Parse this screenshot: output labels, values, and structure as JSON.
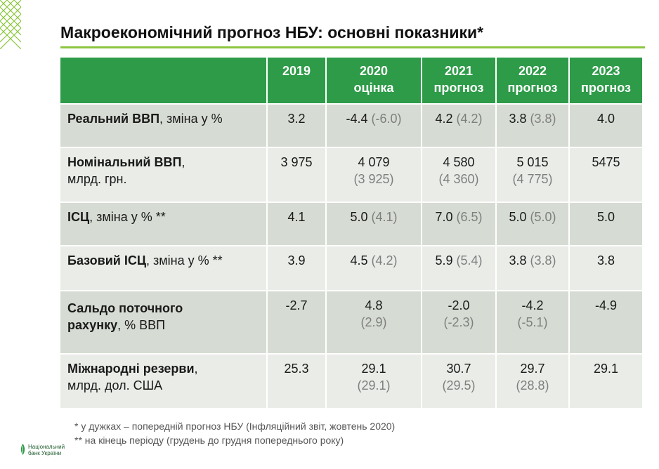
{
  "title": "Макроекономічний прогноз НБУ: основні показники*",
  "colors": {
    "header_green": "#2e9b48",
    "accent_rule": "#8cc63f",
    "row_dark": "#d6dcd3",
    "row_light": "#e9ece7",
    "prev_grey": "#7f7f7f"
  },
  "table": {
    "headers": [
      {
        "line1": "",
        "line2": ""
      },
      {
        "line1": "2019",
        "line2": ""
      },
      {
        "line1": "2020",
        "line2": "оцінка"
      },
      {
        "line1": "2021",
        "line2": "прогноз"
      },
      {
        "line1": "2022",
        "line2": "прогноз"
      },
      {
        "line1": "2023",
        "line2": "прогноз"
      }
    ],
    "rows": [
      {
        "label_bold": "Реальний ВВП",
        "label_rest": ", зміна у %",
        "label_line2": "",
        "cells": [
          {
            "value": "3.2",
            "prev": ""
          },
          {
            "value": "-4.4",
            "prev": "(-6.0)"
          },
          {
            "value": "4.2",
            "prev": "(4.2)"
          },
          {
            "value": "3.8",
            "prev": "(3.8)"
          },
          {
            "value": "4.0",
            "prev": ""
          }
        ]
      },
      {
        "label_bold": "Номінальний ВВП",
        "label_rest": ",",
        "label_line2": "млрд. грн.",
        "cells": [
          {
            "value": "3 975",
            "prev": ""
          },
          {
            "value": "4 079",
            "prev": "(3 925)"
          },
          {
            "value": "4 580",
            "prev": "(4 360)"
          },
          {
            "value": "5 015",
            "prev": "(4 775)"
          },
          {
            "value": "5475",
            "prev": ""
          }
        ]
      },
      {
        "label_bold": "ІСЦ",
        "label_rest": ", зміна у % **",
        "label_line2": "",
        "cells": [
          {
            "value": "4.1",
            "prev": ""
          },
          {
            "value": "5.0",
            "prev": "(4.1)"
          },
          {
            "value": "7.0",
            "prev": "(6.5)"
          },
          {
            "value": "5.0",
            "prev": "(5.0)"
          },
          {
            "value": "5.0",
            "prev": ""
          }
        ]
      },
      {
        "label_bold": "Базовий ІСЦ",
        "label_rest": ", зміна у % **",
        "label_line2": "",
        "cells": [
          {
            "value": "3.9",
            "prev": ""
          },
          {
            "value": "4.5",
            "prev": "(4.2)"
          },
          {
            "value": "5.9",
            "prev": "(5.4)"
          },
          {
            "value": "3.8",
            "prev": "(3.8)"
          },
          {
            "value": "3.8",
            "prev": ""
          }
        ]
      },
      {
        "label_bold": "Сальдо поточного",
        "label_rest": "",
        "label_line2_bold": "рахунку",
        "label_line2": ", % ВВП",
        "cells": [
          {
            "value": "-2.7",
            "prev": ""
          },
          {
            "value": "4.8",
            "prev": "(2.9)"
          },
          {
            "value": "-2.0",
            "prev": "(-2.3)"
          },
          {
            "value": "-4.2",
            "prev": "(-5.1)"
          },
          {
            "value": "-4.9",
            "prev": ""
          }
        ]
      },
      {
        "label_bold": "Міжнародні резерви",
        "label_rest": ",",
        "label_line2": "млрд. дол. США",
        "cells": [
          {
            "value": "25.3",
            "prev": ""
          },
          {
            "value": "29.1",
            "prev": "(29.1)"
          },
          {
            "value": "30.7",
            "prev": "(29.5)"
          },
          {
            "value": "29.7",
            "prev": "(28.8)"
          },
          {
            "value": "29.1",
            "prev": ""
          }
        ]
      }
    ]
  },
  "notes": [
    "* у дужках – попередній прогноз НБУ (Інфляційний звіт, жовтень 2020)",
    "** на кінець періоду (грудень до грудня попереднього року)"
  ],
  "logo": {
    "icon": "nbu-logo-icon",
    "line1": "Національний",
    "line2": "банк України"
  }
}
